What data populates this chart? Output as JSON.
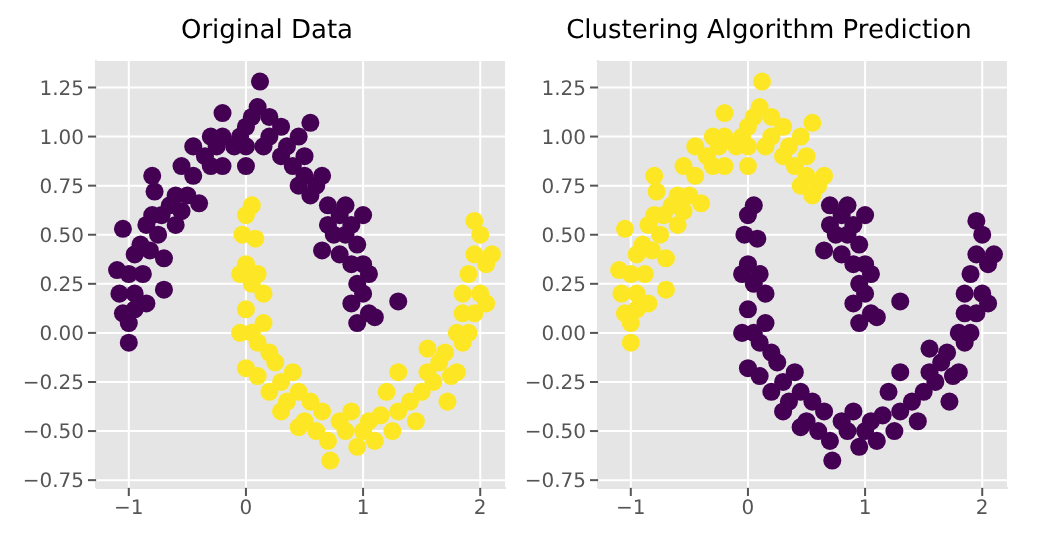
{
  "chart_data": [
    {
      "type": "scatter",
      "title": "Original Data",
      "xlim": [
        -1.28,
        2.22
      ],
      "ylim": [
        -0.79,
        1.39
      ],
      "xticks": [
        -1,
        0,
        1,
        2
      ],
      "yticks": [
        {
          "value": -0.75,
          "label": "−0.75"
        },
        {
          "value": -0.5,
          "label": "−0.50"
        },
        {
          "value": -0.25,
          "label": "−0.25"
        },
        {
          "value": 0,
          "label": "0.00"
        },
        {
          "value": 0.25,
          "label": "0.25"
        },
        {
          "value": 0.5,
          "label": "0.50"
        },
        {
          "value": 0.75,
          "label": "0.75"
        },
        {
          "value": 1,
          "label": "1.00"
        },
        {
          "value": 1.25,
          "label": "1.25"
        }
      ],
      "grid": true,
      "marker": "circle",
      "series": [
        {
          "color": "#440154",
          "x": [
            -1.0,
            -1.05,
            -1.0,
            -1.08,
            -1.1,
            -0.95,
            -1.0,
            -0.95,
            -0.85,
            -1.05,
            -0.95,
            -0.9,
            -0.88,
            -0.85,
            -0.8,
            -0.82,
            -0.75,
            -0.7,
            -0.7,
            -0.78,
            -0.8,
            -0.72,
            -0.65,
            -0.6,
            -0.6,
            -0.55,
            -0.5,
            -0.45,
            -0.55,
            -0.4,
            -0.45,
            -0.35,
            -0.3,
            -0.25,
            -0.3,
            -0.2,
            -0.2,
            -0.1,
            -0.05,
            0.0,
            0.0,
            0.05,
            0.1,
            0.12,
            0.15,
            0.2,
            0.2,
            0.3,
            0.3,
            0.35,
            0.4,
            0.45,
            0.5,
            0.5,
            0.55,
            0.6,
            0.55,
            0.65,
            0.7,
            0.7,
            0.75,
            0.8,
            0.85,
            0.85,
            0.8,
            0.9,
            0.95,
            1.0,
            0.95,
            1.0,
            1.05,
            0.9,
            0.95,
            1.0,
            1.05,
            1.1,
            1.3,
            0.65,
            0.9,
            0.0,
            -0.2,
            0.45
          ],
          "values": [
            -0.05,
            0.1,
            0.05,
            0.2,
            0.32,
            0.2,
            0.3,
            0.12,
            0.15,
            0.53,
            0.4,
            0.45,
            0.3,
            0.55,
            0.6,
            0.42,
            0.5,
            0.38,
            0.22,
            0.72,
            0.8,
            0.6,
            0.65,
            0.7,
            0.55,
            0.62,
            0.7,
            0.8,
            0.85,
            0.66,
            0.95,
            0.9,
            0.85,
            0.95,
            1.0,
            1.0,
            1.12,
            0.95,
            1.0,
            0.85,
            1.05,
            1.1,
            1.15,
            1.28,
            0.95,
            1.0,
            1.1,
            0.9,
            1.05,
            0.95,
            0.85,
            1.0,
            0.9,
            0.8,
            1.07,
            0.75,
            0.7,
            0.8,
            0.65,
            0.55,
            0.5,
            0.6,
            0.65,
            0.5,
            0.4,
            0.35,
            0.45,
            0.6,
            0.25,
            0.35,
            0.3,
            0.15,
            0.05,
            0.2,
            0.1,
            0.08,
            0.16,
            0.42,
            0.55,
            0.95,
            0.85,
            0.75
          ]
        },
        {
          "color": "#fde725",
          "x": [
            -0.05,
            0.0,
            -0.03,
            0.05,
            0.08,
            0.0,
            0.05,
            0.1,
            0.15,
            0.0,
            0.05,
            -0.05,
            0.1,
            0.15,
            0.2,
            0.0,
            0.1,
            0.2,
            0.25,
            0.3,
            0.35,
            0.4,
            0.45,
            0.5,
            0.55,
            0.6,
            0.65,
            0.7,
            0.72,
            0.8,
            0.85,
            0.9,
            0.95,
            1.0,
            1.05,
            1.1,
            1.15,
            1.2,
            1.25,
            1.3,
            1.4,
            1.45,
            1.5,
            1.55,
            1.6,
            1.65,
            1.7,
            1.75,
            1.72,
            1.8,
            1.8,
            1.85,
            1.9,
            1.9,
            1.85,
            1.95,
            1.95,
            2.0,
            2.05,
            2.0,
            2.1,
            2.05,
            1.95,
            0.3,
            0.45,
            1.55,
            1.85,
            1.3
          ],
          "values": [
            0.3,
            0.6,
            0.5,
            0.65,
            0.48,
            0.35,
            0.25,
            0.3,
            0.2,
            0.12,
            0.0,
            0.0,
            -0.05,
            0.05,
            -0.1,
            -0.18,
            -0.22,
            -0.3,
            -0.15,
            -0.25,
            -0.35,
            -0.2,
            -0.3,
            -0.45,
            -0.35,
            -0.5,
            -0.4,
            -0.55,
            -0.65,
            -0.45,
            -0.5,
            -0.4,
            -0.58,
            -0.5,
            -0.45,
            -0.55,
            -0.42,
            -0.3,
            -0.5,
            -0.4,
            -0.35,
            -0.45,
            -0.3,
            -0.2,
            -0.25,
            -0.15,
            -0.1,
            -0.22,
            -0.35,
            0.0,
            -0.2,
            0.1,
            0.0,
            0.3,
            0.2,
            0.4,
            0.57,
            0.5,
            0.35,
            0.2,
            0.4,
            0.15,
            0.1,
            -0.4,
            -0.48,
            -0.08,
            -0.05,
            -0.2
          ]
        }
      ]
    },
    {
      "type": "scatter",
      "title": "Clustering Algorithm Prediction",
      "xlim": [
        -1.28,
        2.22
      ],
      "ylim": [
        -0.79,
        1.39
      ],
      "xticks": [
        -1,
        0,
        1,
        2
      ],
      "yticks": [
        {
          "value": -0.75,
          "label": "−0.75"
        },
        {
          "value": -0.5,
          "label": "−0.50"
        },
        {
          "value": -0.25,
          "label": "−0.25"
        },
        {
          "value": 0,
          "label": "0.00"
        },
        {
          "value": 0.25,
          "label": "0.25"
        },
        {
          "value": 0.5,
          "label": "0.50"
        },
        {
          "value": 0.75,
          "label": "0.75"
        },
        {
          "value": 1,
          "label": "1.00"
        },
        {
          "value": 1.25,
          "label": "1.25"
        }
      ],
      "grid": true,
      "marker": "circle",
      "series": [
        {
          "color": "#fde725",
          "x": [
            -1.0,
            -1.05,
            -1.0,
            -1.08,
            -1.1,
            -0.95,
            -1.0,
            -0.95,
            -0.85,
            -1.05,
            -0.95,
            -0.9,
            -0.88,
            -0.85,
            -0.8,
            -0.82,
            -0.75,
            -0.7,
            -0.7,
            -0.78,
            -0.8,
            -0.72,
            -0.65,
            -0.6,
            -0.6,
            -0.55,
            -0.5,
            -0.45,
            -0.55,
            -0.4,
            -0.45,
            -0.35,
            -0.3,
            -0.25,
            -0.3,
            -0.2,
            -0.2,
            -0.1,
            -0.05,
            0.0,
            0.0,
            0.05,
            0.1,
            0.12,
            0.15,
            0.2,
            0.2,
            0.3,
            0.3,
            0.35,
            0.4,
            0.45,
            0.5,
            0.5,
            0.55,
            0.6,
            0.55,
            0.65,
            0.0,
            -0.2,
            0.45
          ],
          "values": [
            -0.05,
            0.1,
            0.05,
            0.2,
            0.32,
            0.2,
            0.3,
            0.12,
            0.15,
            0.53,
            0.4,
            0.45,
            0.3,
            0.55,
            0.6,
            0.42,
            0.5,
            0.38,
            0.22,
            0.72,
            0.8,
            0.6,
            0.65,
            0.7,
            0.55,
            0.62,
            0.7,
            0.8,
            0.85,
            0.66,
            0.95,
            0.9,
            0.85,
            0.95,
            1.0,
            1.0,
            1.12,
            0.95,
            1.0,
            0.85,
            1.05,
            1.1,
            1.15,
            1.28,
            0.95,
            1.0,
            1.1,
            0.9,
            1.05,
            0.95,
            0.85,
            1.0,
            0.9,
            0.8,
            1.07,
            0.75,
            0.7,
            0.8,
            0.95,
            0.85,
            0.75
          ]
        },
        {
          "color": "#440154",
          "x": [
            0.7,
            0.7,
            0.75,
            0.8,
            0.85,
            0.85,
            0.8,
            0.9,
            0.95,
            1.0,
            0.95,
            1.0,
            1.05,
            0.9,
            0.95,
            1.0,
            1.05,
            1.1,
            1.3,
            0.65,
            0.9,
            -0.05,
            0.0,
            -0.03,
            0.05,
            0.08,
            0.0,
            0.05,
            0.1,
            0.15,
            0.0,
            0.05,
            -0.05,
            0.1,
            0.15,
            0.2,
            0.0,
            0.1,
            0.2,
            0.25,
            0.3,
            0.35,
            0.4,
            0.45,
            0.5,
            0.55,
            0.6,
            0.65,
            0.7,
            0.72,
            0.8,
            0.85,
            0.9,
            0.95,
            1.0,
            1.05,
            1.1,
            1.15,
            1.2,
            1.25,
            1.3,
            1.4,
            1.45,
            1.5,
            1.55,
            1.6,
            1.65,
            1.7,
            1.75,
            1.72,
            1.8,
            1.8,
            1.85,
            1.9,
            1.9,
            1.85,
            1.95,
            1.95,
            2.0,
            2.05,
            2.0,
            2.1,
            2.05,
            1.95,
            0.3,
            0.45,
            1.55,
            1.85,
            1.3
          ],
          "values": [
            0.65,
            0.55,
            0.5,
            0.6,
            0.65,
            0.5,
            0.4,
            0.35,
            0.45,
            0.6,
            0.25,
            0.35,
            0.3,
            0.15,
            0.05,
            0.2,
            0.1,
            0.08,
            0.16,
            0.42,
            0.55,
            0.3,
            0.6,
            0.5,
            0.65,
            0.48,
            0.35,
            0.25,
            0.3,
            0.2,
            0.12,
            0.0,
            0.0,
            -0.05,
            0.05,
            -0.1,
            -0.18,
            -0.22,
            -0.3,
            -0.15,
            -0.25,
            -0.35,
            -0.2,
            -0.3,
            -0.45,
            -0.35,
            -0.5,
            -0.4,
            -0.55,
            -0.65,
            -0.45,
            -0.5,
            -0.4,
            -0.58,
            -0.5,
            -0.45,
            -0.55,
            -0.42,
            -0.3,
            -0.5,
            -0.4,
            -0.35,
            -0.45,
            -0.3,
            -0.2,
            -0.25,
            -0.15,
            -0.1,
            -0.22,
            -0.35,
            0.0,
            -0.2,
            0.1,
            0.0,
            0.3,
            0.2,
            0.4,
            0.57,
            0.5,
            0.35,
            0.2,
            0.4,
            0.15,
            0.1,
            -0.4,
            -0.48,
            -0.08,
            -0.05,
            -0.2
          ]
        }
      ]
    }
  ]
}
